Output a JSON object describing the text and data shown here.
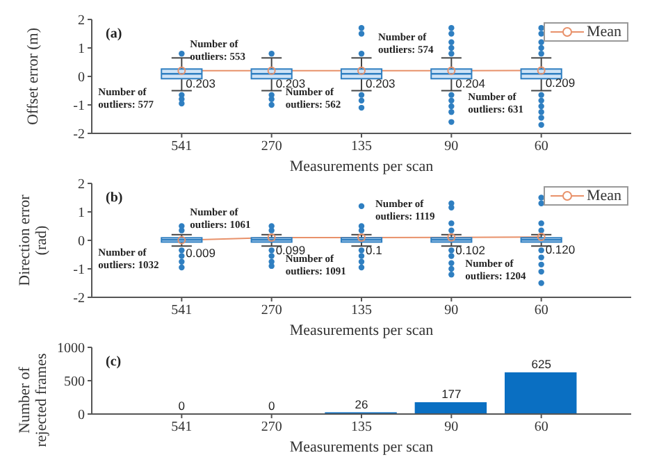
{
  "chart_data": [
    {
      "type": "box",
      "categories": [
        "541",
        "270",
        "135",
        "90",
        "60"
      ],
      "xlabel": "Measurements per scan",
      "ylabel": "Offset error (m)",
      "ylim": [
        -2,
        2
      ],
      "yticks": [
        -2,
        -1,
        0,
        1,
        2
      ],
      "color": "#2f7fc1",
      "legend": "top right",
      "marker": "circle",
      "boxes": [
        {
          "low": -0.5,
          "q1": -0.08,
          "median": 0.09,
          "q3": 0.26,
          "high": 0.65,
          "outliers": [
            0.8,
            -0.65,
            -0.8,
            -0.95
          ]
        },
        {
          "low": -0.5,
          "q1": -0.08,
          "median": 0.09,
          "q3": 0.26,
          "high": 0.65,
          "outliers": [
            0.8,
            -0.65,
            -0.8,
            -1.0
          ]
        },
        {
          "low": -0.5,
          "q1": -0.08,
          "median": 0.09,
          "q3": 0.26,
          "high": 0.65,
          "outliers": [
            1.7,
            1.5,
            0.8,
            -0.65,
            -0.85,
            -1.1
          ]
        },
        {
          "low": -0.5,
          "q1": -0.08,
          "median": 0.09,
          "q3": 0.26,
          "high": 0.65,
          "outliers": [
            1.7,
            1.5,
            1.2,
            1.0,
            0.8,
            -0.65,
            -0.85,
            -1.05,
            -1.25,
            -1.6
          ]
        },
        {
          "low": -0.5,
          "q1": -0.08,
          "median": 0.09,
          "q3": 0.26,
          "high": 0.65,
          "outliers": [
            1.7,
            1.5,
            1.2,
            1.0,
            0.8,
            -0.65,
            -0.85,
            -1.05,
            -1.25,
            -1.45,
            -1.7
          ]
        }
      ],
      "series": [
        {
          "name": "Mean",
          "type": "line",
          "color": "#e8916a",
          "values": [
            0.203,
            0.203,
            0.203,
            0.204,
            0.209
          ],
          "value_labels": [
            "0.203",
            "0.203",
            "0.203",
            "0.204",
            "0.209"
          ]
        }
      ],
      "annotations": [
        "(a)",
        "Number of outliers: 553",
        "Number of outliers: 577",
        "Number of outliers: 562",
        "Number of outliers: 574",
        "Number of outliers: 631"
      ]
    },
    {
      "type": "box",
      "categories": [
        "541",
        "270",
        "135",
        "90",
        "60"
      ],
      "xlabel": "Measurements per scan",
      "ylabel": "Direction error (rad)",
      "ylim": [
        -2,
        2
      ],
      "yticks": [
        -2,
        -1,
        0,
        1,
        2
      ],
      "color": "#2f7fc1",
      "legend": "top right",
      "marker": "circle",
      "boxes": [
        {
          "low": -0.2,
          "q1": -0.06,
          "median": 0.02,
          "q3": 0.09,
          "high": 0.2,
          "outliers": [
            0.35,
            0.5,
            -0.35,
            -0.55,
            -0.75,
            -0.95
          ]
        },
        {
          "low": -0.2,
          "q1": -0.06,
          "median": 0.02,
          "q3": 0.09,
          "high": 0.2,
          "outliers": [
            0.35,
            0.5,
            -0.35,
            -0.55,
            -0.75,
            -0.9
          ]
        },
        {
          "low": -0.2,
          "q1": -0.06,
          "median": 0.02,
          "q3": 0.09,
          "high": 0.2,
          "outliers": [
            1.2,
            0.35,
            0.5,
            -0.35,
            -0.55,
            -0.75,
            -0.95
          ]
        },
        {
          "low": -0.2,
          "q1": -0.06,
          "median": 0.02,
          "q3": 0.09,
          "high": 0.2,
          "outliers": [
            1.3,
            1.15,
            0.6,
            0.35,
            -0.35,
            -0.55,
            -0.8,
            -1.0,
            -1.2
          ]
        },
        {
          "low": -0.2,
          "q1": -0.06,
          "median": 0.02,
          "q3": 0.09,
          "high": 0.2,
          "outliers": [
            1.5,
            1.3,
            0.6,
            0.35,
            -0.35,
            -0.6,
            -0.85,
            -1.1,
            -1.5
          ]
        }
      ],
      "series": [
        {
          "name": "Mean",
          "type": "line",
          "color": "#e8916a",
          "values": [
            0.009,
            0.099,
            0.1,
            0.102,
            0.12
          ],
          "value_labels": [
            "0.009",
            "0.099",
            "0.1",
            "0.102",
            "0.120"
          ]
        }
      ],
      "annotations": [
        "(b)",
        "Number of outliers: 1061",
        "Number of outliers: 1032",
        "Number of outliers: 1091",
        "Number of outliers: 1119",
        "Number of outliers: 1204"
      ]
    },
    {
      "type": "bar",
      "categories": [
        "541",
        "270",
        "135",
        "90",
        "60"
      ],
      "xlabel": "Measurements per scan",
      "ylabel": "Number of rejected frames",
      "ylim": [
        0,
        1000
      ],
      "yticks": [
        0,
        500,
        1000
      ],
      "values": [
        0,
        0,
        26,
        177,
        625
      ],
      "color": "#0a6fc2",
      "data_labels": true,
      "annotations": [
        "(c)"
      ]
    }
  ]
}
